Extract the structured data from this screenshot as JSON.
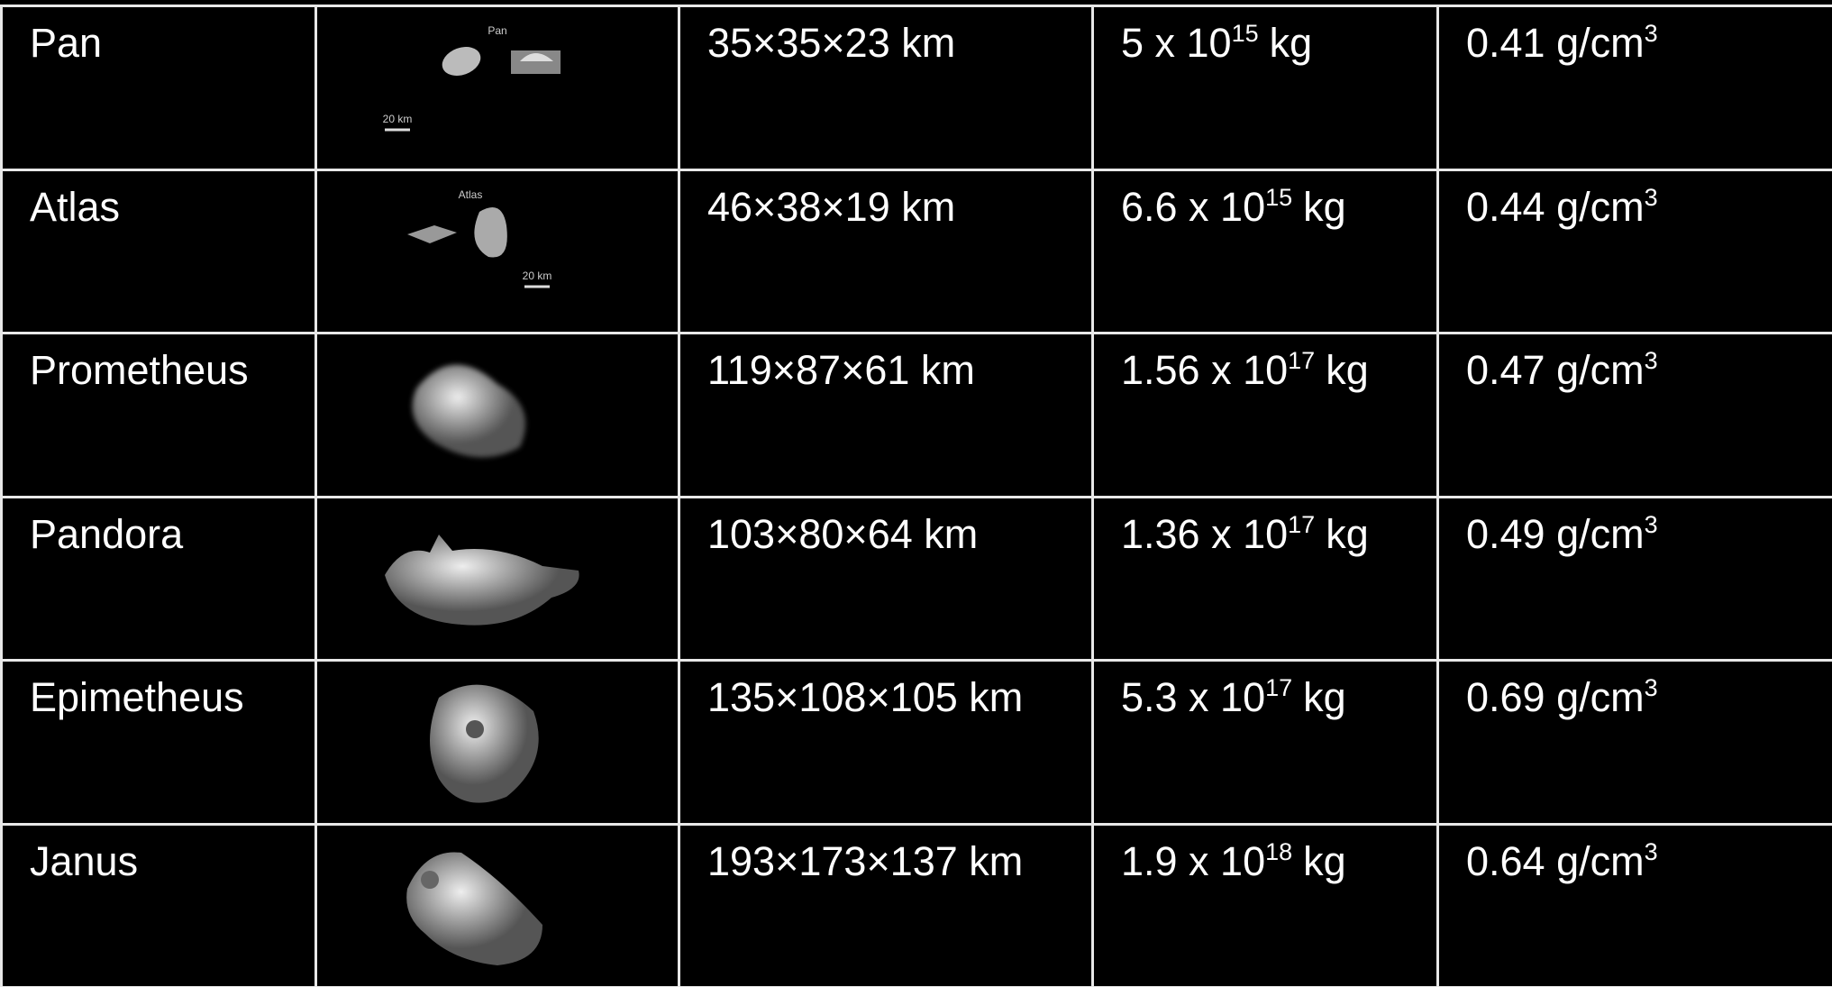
{
  "table": {
    "rows": [
      {
        "name": "Pan",
        "image": {
          "caption": "Pan",
          "scale": "20 km"
        },
        "size": "35×35×23 km",
        "mass": {
          "base": "5 x 10",
          "exponent": "15",
          "unit": "kg"
        },
        "density": {
          "base": "0.41 g/cm",
          "exponent": "3"
        }
      },
      {
        "name": "Atlas",
        "image": {
          "caption": "Atlas",
          "scale": "20 km"
        },
        "size": "46×38×19 km",
        "mass": {
          "base": "6.6 x 10",
          "exponent": "15",
          "unit": "kg"
        },
        "density": {
          "base": "0.44 g/cm",
          "exponent": "3"
        }
      },
      {
        "name": "Prometheus",
        "size": "119×87×61 km",
        "mass": {
          "base": "1.56 x 10",
          "exponent": "17",
          "unit": "kg"
        },
        "density": {
          "base": "0.47 g/cm",
          "exponent": "3"
        }
      },
      {
        "name": "Pandora",
        "size": "103×80×64 km",
        "mass": {
          "base": "1.36 x 10",
          "exponent": "17",
          "unit": "kg"
        },
        "density": {
          "base": "0.49 g/cm",
          "exponent": "3"
        }
      },
      {
        "name": "Epimetheus",
        "size": "135×108×105 km",
        "mass": {
          "base": "5.3 x 10",
          "exponent": "17",
          "unit": "kg"
        },
        "density": {
          "base": "0.69 g/cm",
          "exponent": "3"
        }
      },
      {
        "name": "Janus",
        "size": "193×173×137 km",
        "mass": {
          "base": "1.9 x 10",
          "exponent": "18",
          "unit": "kg"
        },
        "density": {
          "base": "0.64 g/cm",
          "exponent": "3"
        }
      }
    ]
  }
}
